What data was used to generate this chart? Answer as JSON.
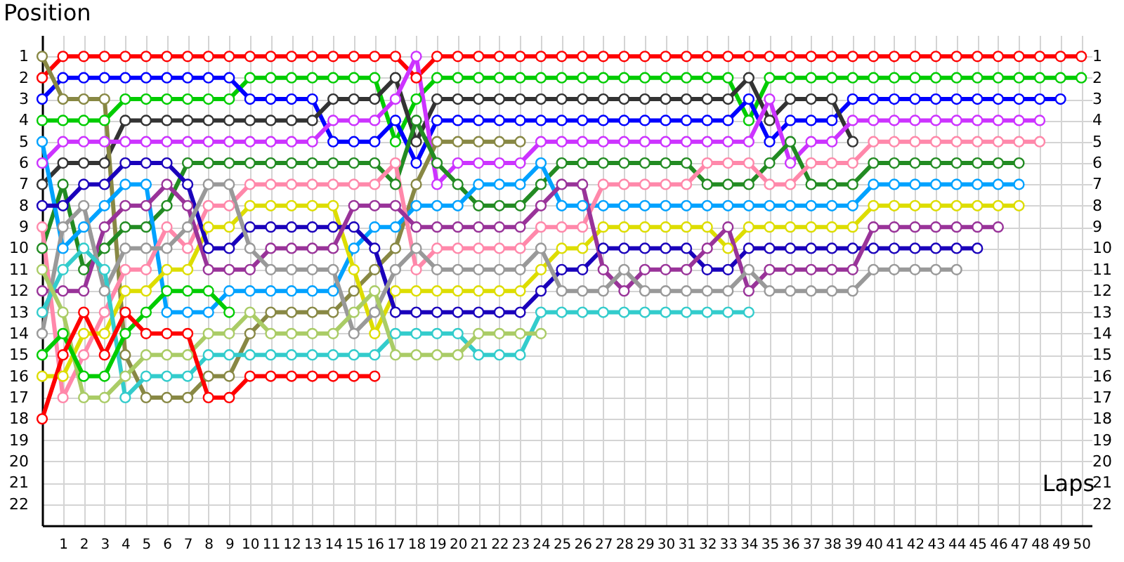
{
  "chart_data": {
    "type": "line",
    "xlabel": "Laps",
    "ylabel": "Position",
    "x": [
      0,
      1,
      2,
      3,
      4,
      5,
      6,
      7,
      8,
      9,
      10,
      11,
      12,
      13,
      14,
      15,
      16,
      17,
      18,
      19,
      20,
      21,
      22,
      23,
      24,
      25,
      26,
      27,
      28,
      29,
      30,
      31,
      32,
      33,
      34,
      35,
      36,
      37,
      38,
      39,
      40,
      41,
      42,
      43,
      44,
      45,
      46,
      47,
      48,
      49,
      50
    ],
    "xlim": [
      0,
      50.5
    ],
    "xticks": [
      1,
      2,
      3,
      4,
      5,
      6,
      7,
      8,
      9,
      10,
      11,
      12,
      13,
      14,
      15,
      16,
      17,
      18,
      19,
      20,
      21,
      22,
      23,
      24,
      25,
      26,
      27,
      28,
      29,
      30,
      31,
      32,
      33,
      34,
      35,
      36,
      37,
      38,
      39,
      40,
      41,
      42,
      43,
      44,
      45,
      46,
      47,
      48,
      49,
      50
    ],
    "ylim": [
      23,
      0
    ],
    "yticks": [
      1,
      2,
      3,
      4,
      5,
      6,
      7,
      8,
      9,
      10,
      11,
      12,
      13,
      14,
      15,
      16,
      17,
      18,
      19,
      20,
      21,
      22
    ],
    "y2lim": [
      23,
      0
    ],
    "y2ticks": [
      1,
      2,
      3,
      4,
      5,
      6,
      7,
      8,
      9,
      10,
      11,
      12,
      13,
      14,
      15,
      16,
      17,
      18,
      19,
      20,
      21,
      22
    ],
    "grid": true,
    "marker": "circle",
    "line_style": "solid",
    "series": [
      {
        "color": "#ff0000",
        "values": [
          2,
          1,
          1,
          1,
          1,
          1,
          1,
          1,
          1,
          1,
          1,
          1,
          1,
          1,
          1,
          1,
          1,
          1,
          2,
          1,
          1,
          1,
          1,
          1,
          1,
          1,
          1,
          1,
          1,
          1,
          1,
          1,
          1,
          1,
          1,
          1,
          1,
          1,
          1,
          1,
          1,
          1,
          1,
          1,
          1,
          1,
          1,
          1,
          1,
          1,
          1
        ]
      },
      {
        "color": "#00cc00",
        "values": [
          4,
          4,
          4,
          4,
          3,
          3,
          3,
          3,
          3,
          3,
          2,
          2,
          2,
          2,
          2,
          2,
          2,
          5,
          3,
          2,
          2,
          2,
          2,
          2,
          2,
          2,
          2,
          2,
          2,
          2,
          2,
          2,
          2,
          2,
          4,
          2,
          2,
          2,
          2,
          2,
          2,
          2,
          2,
          2,
          2,
          2,
          2,
          2,
          2,
          2,
          2
        ]
      },
      {
        "color": "#0000ff",
        "values": [
          3,
          2,
          2,
          2,
          2,
          2,
          2,
          2,
          2,
          2,
          3,
          3,
          3,
          3,
          5,
          5,
          5,
          4,
          6,
          4,
          4,
          4,
          4,
          4,
          4,
          4,
          4,
          4,
          4,
          4,
          4,
          4,
          4,
          4,
          3,
          5,
          4,
          4,
          4,
          3,
          3,
          3,
          3,
          3,
          3,
          3,
          3,
          3,
          3,
          3,
          null
        ]
      },
      {
        "color": "#333333",
        "values": [
          7,
          6,
          6,
          6,
          4,
          4,
          4,
          4,
          4,
          4,
          4,
          4,
          4,
          4,
          3,
          3,
          3,
          2,
          5,
          3,
          3,
          3,
          3,
          3,
          3,
          3,
          3,
          3,
          3,
          3,
          3,
          3,
          3,
          3,
          2,
          4,
          3,
          3,
          3,
          5,
          null,
          null,
          null,
          null,
          null,
          null,
          null,
          null,
          null,
          null,
          null
        ]
      },
      {
        "color": "#cc33ff",
        "values": [
          6,
          5,
          5,
          5,
          5,
          5,
          5,
          5,
          5,
          5,
          5,
          5,
          5,
          5,
          4,
          4,
          4,
          3,
          1,
          7,
          6,
          6,
          6,
          6,
          5,
          5,
          5,
          5,
          5,
          5,
          5,
          5,
          5,
          5,
          5,
          3,
          6,
          5,
          5,
          4,
          4,
          4,
          4,
          4,
          4,
          4,
          4,
          4,
          4,
          null,
          null
        ]
      },
      {
        "color": "#888844",
        "values": [
          1,
          3,
          3,
          3,
          15,
          17,
          17,
          17,
          16,
          16,
          14,
          13,
          13,
          13,
          13,
          12,
          11,
          10,
          7,
          5,
          5,
          5,
          5,
          5,
          null,
          null,
          null,
          null,
          null,
          null,
          null,
          null,
          null,
          null,
          null,
          null,
          null,
          null,
          null,
          null,
          null,
          null,
          null,
          null,
          null,
          null,
          null,
          null,
          null,
          null,
          null
        ]
      },
      {
        "color": "#228b22",
        "values": [
          10,
          7,
          11,
          10,
          9,
          9,
          8,
          6,
          6,
          6,
          6,
          6,
          6,
          6,
          6,
          6,
          6,
          7,
          4,
          6,
          7,
          8,
          8,
          8,
          7,
          6,
          6,
          6,
          6,
          6,
          6,
          6,
          7,
          7,
          7,
          6,
          5,
          7,
          7,
          7,
          6,
          6,
          6,
          6,
          6,
          6,
          6,
          6,
          null,
          null,
          null
        ]
      },
      {
        "color": "#00a2ff",
        "values": [
          5,
          10,
          9,
          8,
          7,
          7,
          13,
          13,
          13,
          12,
          12,
          12,
          12,
          12,
          12,
          10,
          9,
          9,
          8,
          8,
          8,
          7,
          7,
          7,
          6,
          8,
          8,
          8,
          8,
          8,
          8,
          8,
          8,
          8,
          8,
          8,
          8,
          8,
          8,
          8,
          7,
          7,
          7,
          7,
          7,
          7,
          7,
          7,
          null,
          null,
          null
        ]
      },
      {
        "color": "#ff88aa",
        "values": [
          9,
          17,
          15,
          13,
          11,
          11,
          9,
          10,
          8,
          8,
          7,
          7,
          7,
          7,
          7,
          7,
          7,
          6,
          11,
          10,
          10,
          10,
          10,
          10,
          9,
          9,
          9,
          7,
          7,
          7,
          7,
          7,
          6,
          6,
          6,
          7,
          7,
          6,
          6,
          6,
          5,
          5,
          5,
          5,
          5,
          5,
          5,
          5,
          5,
          null,
          null
        ]
      },
      {
        "color": "#dddd00",
        "values": [
          16,
          16,
          14,
          14,
          12,
          12,
          11,
          11,
          9,
          9,
          8,
          8,
          8,
          8,
          8,
          11,
          14,
          12,
          12,
          12,
          12,
          12,
          12,
          12,
          11,
          10,
          10,
          9,
          9,
          9,
          9,
          9,
          9,
          10,
          9,
          9,
          9,
          9,
          9,
          9,
          8,
          8,
          8,
          8,
          8,
          8,
          8,
          8,
          null,
          null,
          null
        ]
      },
      {
        "color": "#1a00bb",
        "values": [
          8,
          8,
          7,
          7,
          6,
          6,
          6,
          7,
          10,
          10,
          9,
          9,
          9,
          9,
          9,
          9,
          10,
          13,
          13,
          13,
          13,
          13,
          13,
          13,
          12,
          11,
          11,
          10,
          10,
          10,
          10,
          10,
          11,
          11,
          10,
          10,
          10,
          10,
          10,
          10,
          10,
          10,
          10,
          10,
          10,
          10,
          null,
          null,
          null,
          null,
          null
        ]
      },
      {
        "color": "#993399",
        "values": [
          12,
          12,
          12,
          9,
          8,
          8,
          7,
          8,
          11,
          11,
          11,
          10,
          10,
          10,
          10,
          8,
          8,
          8,
          9,
          9,
          9,
          9,
          9,
          9,
          8,
          7,
          7,
          11,
          12,
          11,
          11,
          11,
          10,
          9,
          12,
          11,
          11,
          11,
          11,
          11,
          9,
          9,
          9,
          9,
          9,
          9,
          9,
          null,
          null,
          null,
          null
        ]
      },
      {
        "color": "#999999",
        "values": [
          14,
          9,
          8,
          12,
          10,
          10,
          10,
          9,
          7,
          7,
          10,
          11,
          11,
          11,
          11,
          14,
          13,
          11,
          10,
          11,
          11,
          11,
          11,
          11,
          10,
          12,
          12,
          12,
          11,
          12,
          12,
          12,
          12,
          12,
          11,
          12,
          12,
          12,
          12,
          12,
          11,
          11,
          11,
          11,
          11,
          null,
          null,
          null,
          null,
          null,
          null
        ]
      },
      {
        "color": "#33cccc",
        "values": [
          13,
          11,
          10,
          11,
          17,
          16,
          16,
          16,
          15,
          15,
          15,
          15,
          15,
          15,
          15,
          15,
          15,
          14,
          14,
          14,
          14,
          15,
          15,
          15,
          13,
          13,
          13,
          13,
          13,
          13,
          13,
          13,
          13,
          13,
          13,
          null,
          null,
          null,
          null,
          null,
          null,
          null,
          null,
          null,
          null,
          null,
          null,
          null,
          null,
          null,
          null
        ]
      },
      {
        "color": "#aacc66",
        "values": [
          11,
          13,
          17,
          17,
          16,
          15,
          15,
          15,
          14,
          14,
          13,
          14,
          14,
          14,
          14,
          13,
          12,
          15,
          15,
          15,
          15,
          14,
          14,
          14,
          14,
          null,
          null,
          null,
          null,
          null,
          null,
          null,
          null,
          null,
          null,
          null,
          null,
          null,
          null,
          null,
          null,
          null,
          null,
          null,
          null,
          null,
          null,
          null,
          null,
          null,
          null
        ]
      },
      {
        "color": "#00cc00",
        "values": [
          15,
          14,
          16,
          16,
          14,
          13,
          12,
          12,
          12,
          13,
          null,
          null,
          null,
          null,
          null,
          null,
          null,
          null,
          null,
          null,
          null,
          null,
          null,
          null,
          null,
          null,
          null,
          null,
          null,
          null,
          null,
          null,
          null,
          null,
          null,
          null,
          null,
          null,
          null,
          null,
          null,
          null,
          null,
          null,
          null,
          null,
          null,
          null,
          null,
          null,
          null
        ]
      },
      {
        "color": "#ff0000",
        "values": [
          18,
          15,
          13,
          15,
          13,
          14,
          14,
          14,
          17,
          17,
          16,
          16,
          16,
          16,
          16,
          16,
          16,
          null,
          null,
          null,
          null,
          null,
          null,
          null,
          null,
          null,
          null,
          null,
          null,
          null,
          null,
          null,
          null,
          null,
          null,
          null,
          null,
          null,
          null,
          null,
          null,
          null,
          null,
          null,
          null,
          null,
          null,
          null,
          null,
          null,
          null
        ]
      }
    ]
  }
}
